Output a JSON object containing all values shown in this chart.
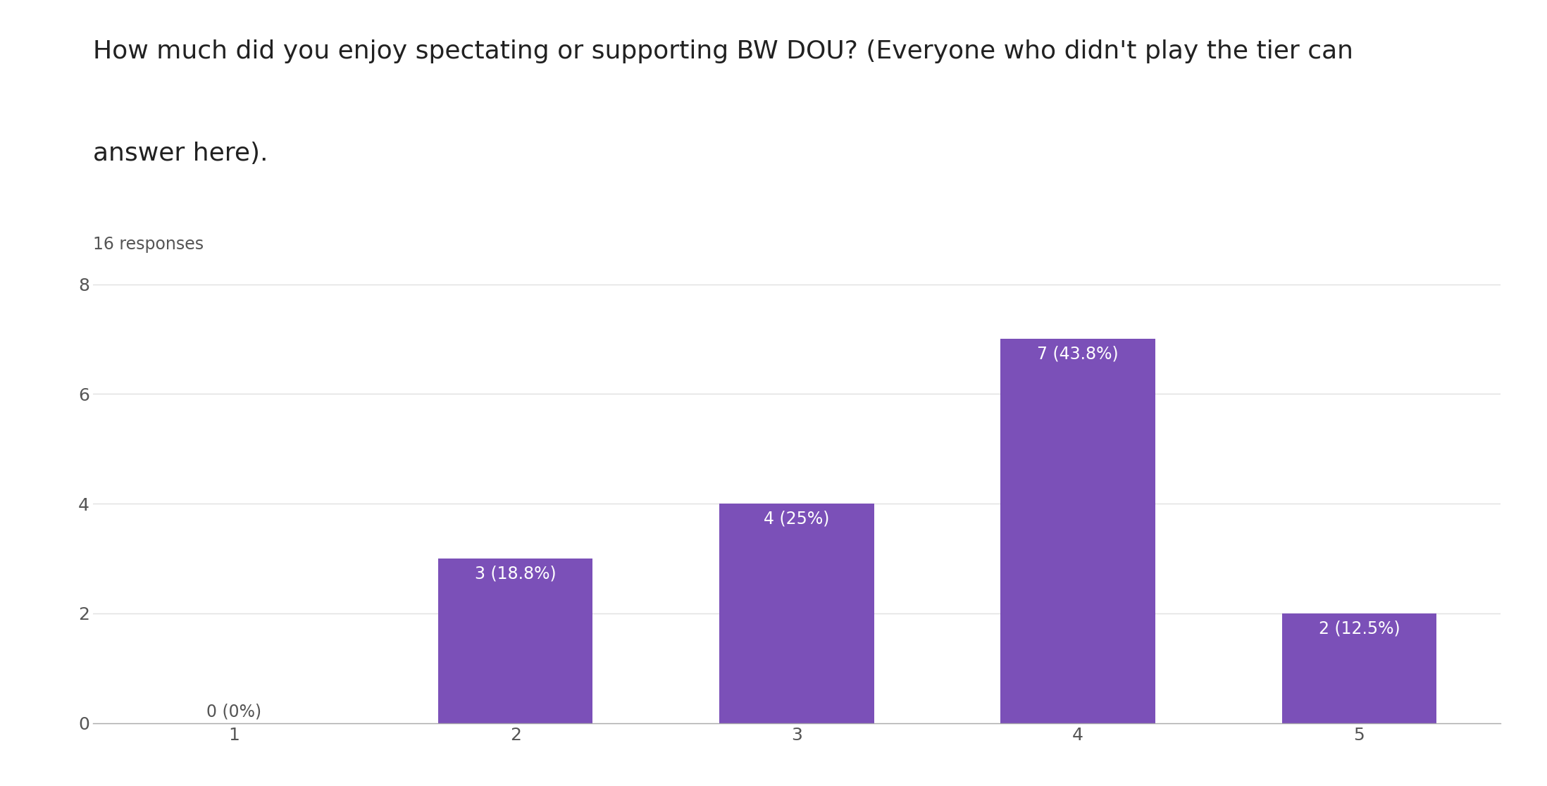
{
  "title_line1": "How much did you enjoy spectating or supporting BW DOU? (Everyone who didn't play the tier can",
  "title_line2": "answer here).",
  "subtitle": "16 responses",
  "categories": [
    1,
    2,
    3,
    4,
    5
  ],
  "values": [
    0,
    3,
    4,
    7,
    2
  ],
  "labels": [
    "0 (0%)",
    "3 (18.8%)",
    "4 (25%)",
    "7 (43.8%)",
    "2 (12.5%)"
  ],
  "bar_color": "#7b50b8",
  "zero_bar_color": "#cccccc",
  "background_color": "#ffffff",
  "ylim": [
    0,
    8.5
  ],
  "yticks": [
    0,
    2,
    4,
    6,
    8
  ],
  "title_fontsize": 26,
  "subtitle_fontsize": 17,
  "tick_fontsize": 18,
  "label_fontsize": 17,
  "grid_color": "#e0e0e0",
  "text_color": "#212121",
  "subtitle_color": "#555555",
  "label_text_color_inside": "#ffffff",
  "label_text_color_outside": "#555555"
}
